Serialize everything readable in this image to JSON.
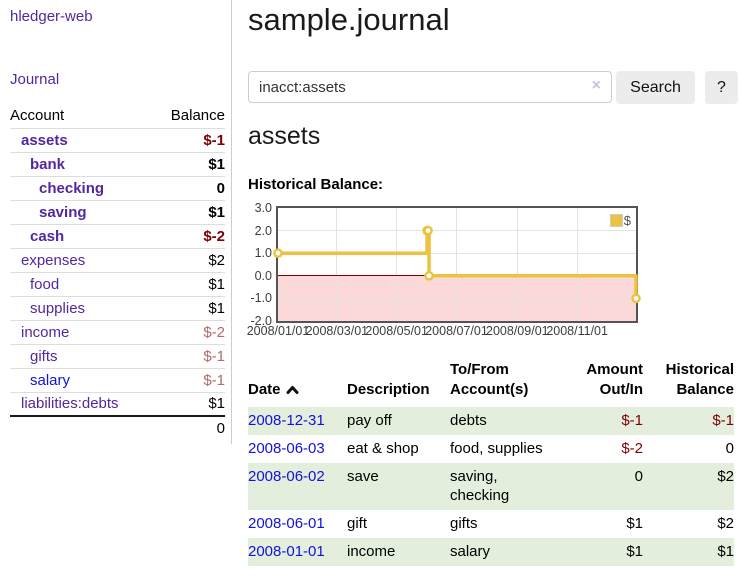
{
  "colors": {
    "purple": "#54279E",
    "blue": "#1212D8",
    "negstrong": "#7F0000",
    "negmuted": "#B36A6A",
    "green": "#E3EFDC",
    "yellow": "#EDC240",
    "pink": "#FBD9D9",
    "grid": "#E3E3E3",
    "cborder": "#545454",
    "btn": "#ECECEC",
    "clearx": "#C9C2E4"
  },
  "sidebar": {
    "app_title": "hledger-web",
    "journal_link": "Journal",
    "accounts_table": {
      "headers": [
        "Account",
        "Balance"
      ],
      "rows": [
        {
          "name": "assets",
          "balance": "$-1",
          "depth": 1,
          "bold": true,
          "balance_class": "negs",
          "link_class": ""
        },
        {
          "name": "bank",
          "balance": "$1",
          "depth": 2,
          "bold": true,
          "balance_class": "pos",
          "link_class": ""
        },
        {
          "name": "checking",
          "balance": "0",
          "depth": 3,
          "bold": true,
          "balance_class": "pos",
          "link_class": ""
        },
        {
          "name": "saving",
          "balance": "$1",
          "depth": 3,
          "bold": true,
          "balance_class": "pos",
          "link_class": ""
        },
        {
          "name": "cash",
          "balance": "$-2",
          "depth": 2,
          "bold": true,
          "balance_class": "negs",
          "link_class": ""
        },
        {
          "name": "expenses",
          "balance": "$2",
          "depth": 1,
          "bold": false,
          "balance_class": "pos",
          "link_class": ""
        },
        {
          "name": "food",
          "balance": "$1",
          "depth": 2,
          "bold": false,
          "balance_class": "pos",
          "link_class": ""
        },
        {
          "name": "supplies",
          "balance": "$1",
          "depth": 2,
          "bold": false,
          "balance_class": "pos",
          "link_class": ""
        },
        {
          "name": "income",
          "balance": "$-2",
          "depth": 1,
          "bold": false,
          "balance_class": "negm",
          "link_class": ""
        },
        {
          "name": "gifts",
          "balance": "$-1",
          "depth": 2,
          "bold": false,
          "balance_class": "negm",
          "link_class": ""
        },
        {
          "name": "salary",
          "balance": "$-1",
          "depth": 2,
          "bold": false,
          "balance_class": "negm",
          "link_class": "blue"
        },
        {
          "name": "liabilities:debts",
          "balance": "$1",
          "depth": 1,
          "bold": false,
          "balance_class": "pos",
          "link_class": ""
        }
      ],
      "total": "0"
    }
  },
  "main": {
    "title": "sample.journal",
    "search": {
      "value": "inacct:assets",
      "clear_icon": "×",
      "search_label": "Search",
      "help_label": "?"
    },
    "account_heading": "assets",
    "chart_heading": "Historical Balance:",
    "register": {
      "headers": [
        "Date",
        "Description",
        "To/From Account(s)",
        "Amount Out/In",
        "Historical Balance"
      ],
      "sort_icon": "chevron-up",
      "rows": [
        {
          "date": "2008-12-31",
          "description": "pay off",
          "accounts": "debts",
          "amount": "$-1",
          "amount_negative": true,
          "balance": "$-1",
          "balance_negative": true
        },
        {
          "date": "2008-06-03",
          "description": "eat & shop",
          "accounts": "food, supplies",
          "amount": "$-2",
          "amount_negative": true,
          "balance": "0",
          "balance_negative": false
        },
        {
          "date": "2008-06-02",
          "description": "save",
          "accounts": "saving,\nchecking",
          "amount": "0",
          "amount_negative": false,
          "balance": "$2",
          "balance_negative": false
        },
        {
          "date": "2008-06-01",
          "description": "gift",
          "accounts": "gifts",
          "amount": "$1",
          "amount_negative": false,
          "balance": "$2",
          "balance_negative": false
        },
        {
          "date": "2008-01-01",
          "description": "income",
          "accounts": "salary",
          "amount": "$1",
          "amount_negative": false,
          "balance": "$1",
          "balance_negative": false
        }
      ]
    }
  },
  "chart_data": {
    "type": "line",
    "style": "step",
    "title": "Historical Balance:",
    "legend": "$",
    "legend_position": "top-right",
    "series": [
      {
        "name": "$",
        "color": "#EDC240",
        "points": [
          [
            "2008-01-01",
            1
          ],
          [
            "2008-06-01",
            2
          ],
          [
            "2008-06-02",
            2
          ],
          [
            "2008-06-03",
            0
          ],
          [
            "2008-12-31",
            -1
          ]
        ]
      }
    ],
    "xrange": [
      "2008-01-01",
      "2008-12-31"
    ],
    "ylim": [
      -2,
      3
    ],
    "yticks": [
      3.0,
      2.0,
      1.0,
      0.0,
      -1.0,
      -2.0
    ],
    "ytick_labels": [
      "3.0",
      "2.0",
      "1.0",
      "0.0",
      "-1.0",
      "-2.0"
    ],
    "xticks": [
      "2008-01-01",
      "2008-03-01",
      "2008-05-01",
      "2008-07-01",
      "2008-09-01",
      "2008-11-01"
    ],
    "xtick_labels": [
      "2008/01/01",
      "2008/03/01",
      "2008/05/01",
      "2008/07/01",
      "2008/09/01",
      "2008/11/01"
    ],
    "grid": true,
    "negative_region_color": "#FBD9D9",
    "zero_line_color": "#7F0000"
  }
}
